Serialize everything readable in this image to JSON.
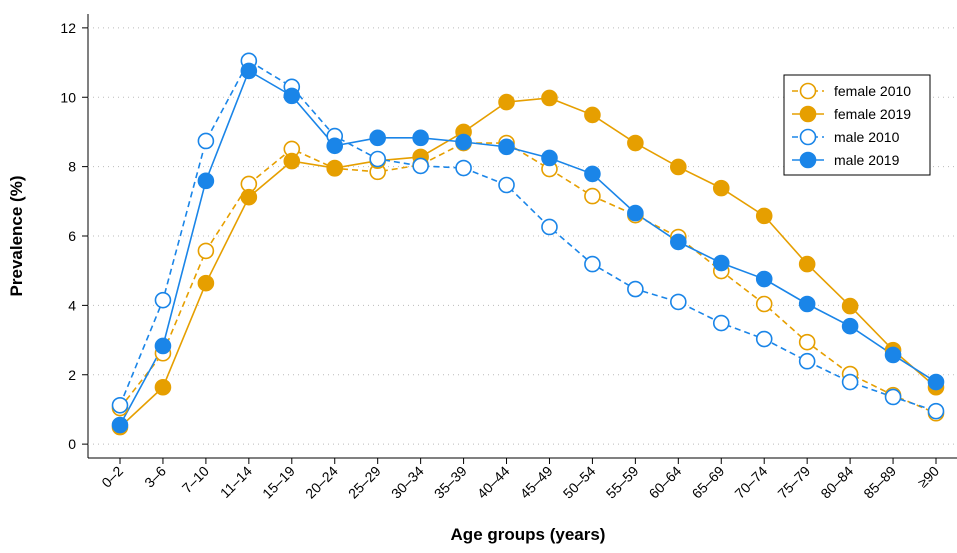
{
  "chart_data": {
    "type": "line",
    "x_label": "Age groups (years)",
    "y_label": "Prevalence (%)",
    "categories": [
      "0–2",
      "3–6",
      "7–10",
      "11–14",
      "15–19",
      "20–24",
      "25–29",
      "30–34",
      "35–39",
      "40–44",
      "45–49",
      "50–54",
      "55–59",
      "60–64",
      "65–69",
      "70–74",
      "75–79",
      "80–84",
      "85–89",
      "≥90"
    ],
    "series": [
      {
        "name": "female 2010",
        "color": "#E69F00",
        "dashed": true,
        "filled": false,
        "values": [
          1.04,
          2.62,
          5.57,
          7.5,
          8.51,
          7.95,
          7.85,
          8.05,
          8.68,
          8.68,
          7.93,
          7.15,
          6.6,
          5.97,
          4.99,
          4.04,
          2.94,
          2.02,
          1.41,
          0.89
        ]
      },
      {
        "name": "female 2019",
        "color": "#E69F00",
        "dashed": false,
        "filled": true,
        "values": [
          0.49,
          1.64,
          4.64,
          7.12,
          8.16,
          7.96,
          8.17,
          8.28,
          9.0,
          9.86,
          9.98,
          9.49,
          8.68,
          7.99,
          7.38,
          6.58,
          5.19,
          3.98,
          2.71,
          1.64
        ]
      },
      {
        "name": "male 2010",
        "color": "#1A85E8",
        "dashed": true,
        "filled": false,
        "values": [
          1.12,
          4.15,
          8.74,
          11.05,
          10.3,
          8.88,
          8.22,
          8.02,
          7.96,
          7.47,
          6.26,
          5.19,
          4.47,
          4.1,
          3.49,
          3.03,
          2.39,
          1.79,
          1.36,
          0.95
        ]
      },
      {
        "name": "male 2019",
        "color": "#1A85E8",
        "dashed": false,
        "filled": true,
        "values": [
          0.55,
          2.83,
          7.59,
          10.76,
          10.04,
          8.6,
          8.83,
          8.83,
          8.71,
          8.57,
          8.25,
          7.79,
          6.66,
          5.83,
          5.22,
          4.76,
          4.04,
          3.4,
          2.57,
          1.79
        ]
      }
    ],
    "ylim": [
      -0.4,
      12.4
    ],
    "yticks": [
      0,
      2,
      4,
      6,
      8,
      10,
      12
    ],
    "grid": true,
    "legend": "top-right"
  }
}
